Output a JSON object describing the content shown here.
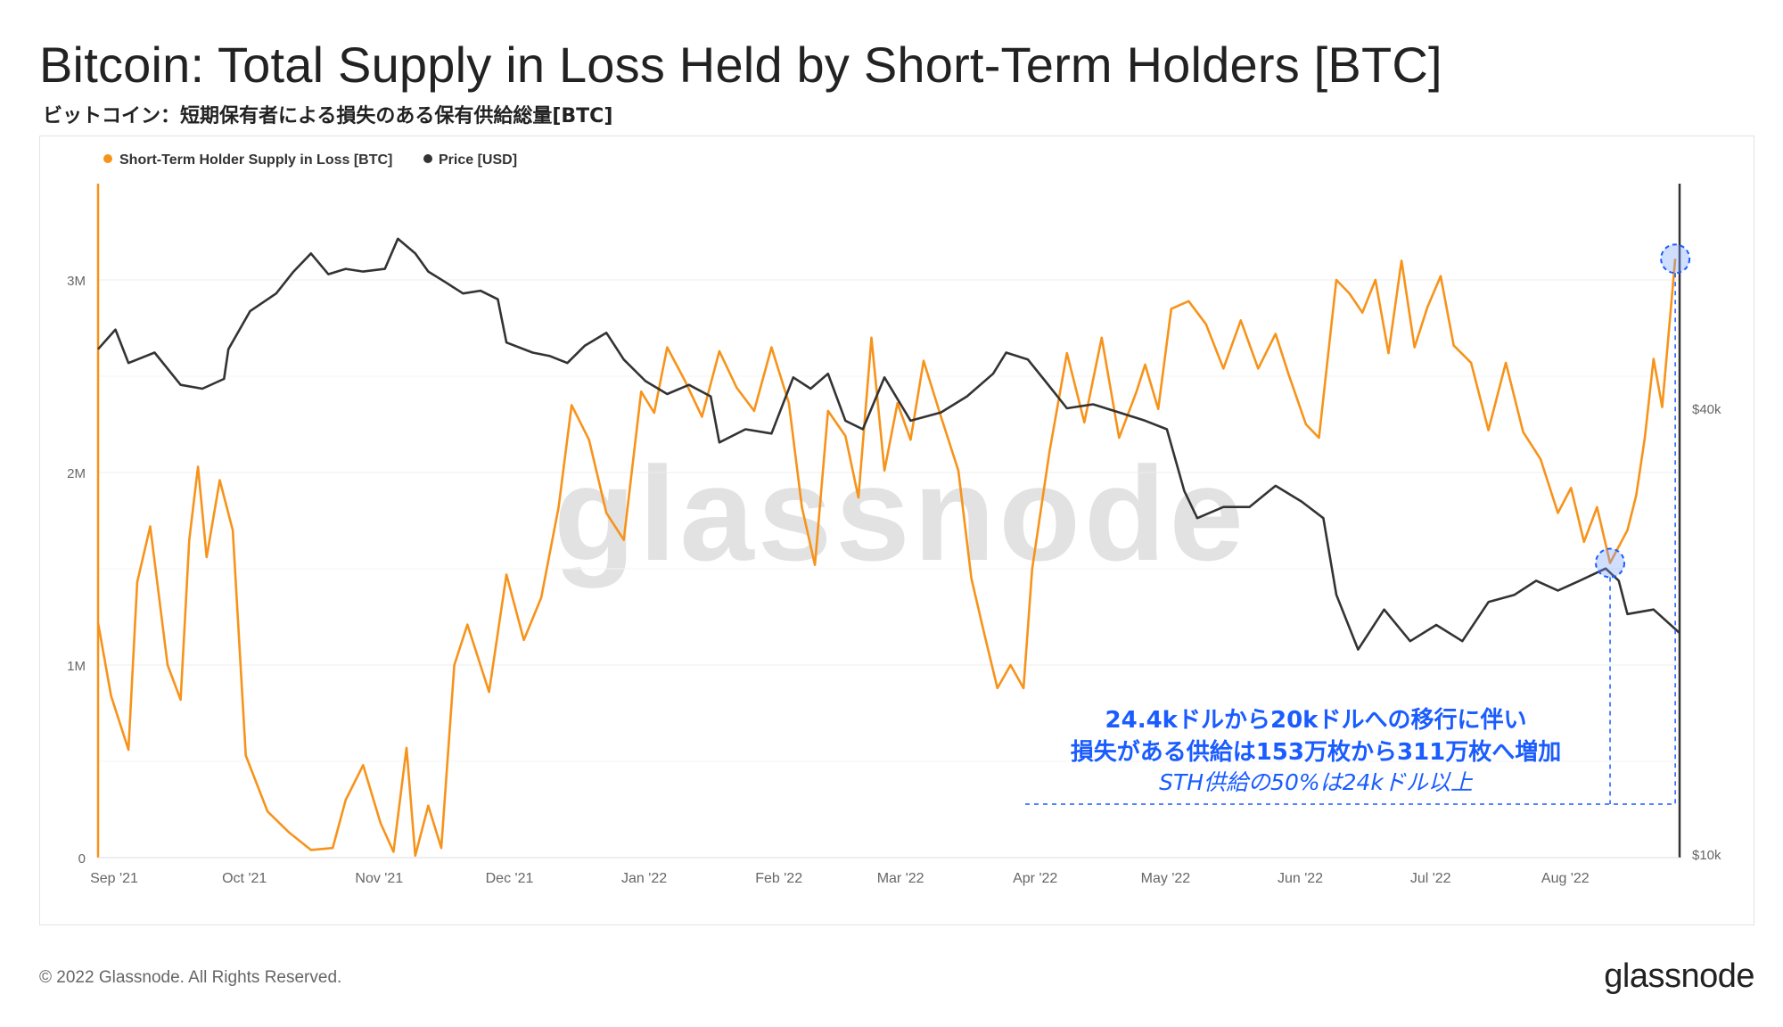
{
  "header": {
    "title": "Bitcoin: Total Supply in Loss Held by Short-Term Holders [BTC]",
    "subtitle": "ビットコイン：短期保有者による損失のある保有供給総量[BTC]"
  },
  "footer": {
    "copyright": "© 2022 Glassnode. All Rights Reserved.",
    "logo": "glassnode"
  },
  "watermark": "glassnode",
  "annotation": {
    "line1": "24.4kドルから20kドルへの移行に伴い",
    "line2": "損失がある供給は153万枚から311万枚へ増加",
    "line3": "STH供給の50%は24kドル以上",
    "color": "#1a5cff"
  },
  "chart_data": {
    "type": "line",
    "x_start": "2021-09-01",
    "x_end": "2022-08-31",
    "x_ticks": [
      "Sep '21",
      "Oct '21",
      "Nov '21",
      "Dec '21",
      "Jan '22",
      "Feb '22",
      "Mar '22",
      "Apr '22",
      "May '22",
      "Jun '22",
      "Jul '22",
      "Aug '22"
    ],
    "y_left": {
      "ticks": [
        "0",
        "1M",
        "2M",
        "3M"
      ],
      "ylim": [
        0,
        3500000
      ]
    },
    "y_right": {
      "ticks": [
        "$10k",
        "$40k"
      ],
      "scale": "log",
      "ylim": [
        10000,
        80000
      ]
    },
    "legend_placement": "top-left",
    "grid": true,
    "colors": {
      "sth": "#f7931a",
      "price": "#333333",
      "grid": "#ececec",
      "axis_text": "#666666"
    },
    "series": [
      {
        "name": "Short-Term Holder Supply in Loss [BTC]",
        "axis": "left",
        "points": [
          [
            "2021-09-01",
            1220000
          ],
          [
            "2021-09-04",
            840000
          ],
          [
            "2021-09-08",
            560000
          ],
          [
            "2021-09-10",
            1430000
          ],
          [
            "2021-09-13",
            1720000
          ],
          [
            "2021-09-17",
            1000000
          ],
          [
            "2021-09-20",
            820000
          ],
          [
            "2021-09-22",
            1650000
          ],
          [
            "2021-09-24",
            2030000
          ],
          [
            "2021-09-26",
            1560000
          ],
          [
            "2021-09-29",
            1960000
          ],
          [
            "2021-10-02",
            1700000
          ],
          [
            "2021-10-05",
            530000
          ],
          [
            "2021-10-10",
            240000
          ],
          [
            "2021-10-15",
            130000
          ],
          [
            "2021-10-20",
            40000
          ],
          [
            "2021-10-25",
            50000
          ],
          [
            "2021-10-28",
            300000
          ],
          [
            "2021-11-01",
            480000
          ],
          [
            "2021-11-05",
            180000
          ],
          [
            "2021-11-08",
            30000
          ],
          [
            "2021-11-11",
            570000
          ],
          [
            "2021-11-13",
            10000
          ],
          [
            "2021-11-16",
            270000
          ],
          [
            "2021-11-19",
            50000
          ],
          [
            "2021-11-22",
            1000000
          ],
          [
            "2021-11-25",
            1210000
          ],
          [
            "2021-11-30",
            860000
          ],
          [
            "2021-12-04",
            1470000
          ],
          [
            "2021-12-08",
            1130000
          ],
          [
            "2021-12-12",
            1350000
          ],
          [
            "2021-12-16",
            1820000
          ],
          [
            "2021-12-19",
            2350000
          ],
          [
            "2021-12-23",
            2170000
          ],
          [
            "2021-12-27",
            1790000
          ],
          [
            "2021-12-31",
            1650000
          ],
          [
            "2022-01-04",
            2420000
          ],
          [
            "2022-01-07",
            2310000
          ],
          [
            "2022-01-10",
            2650000
          ],
          [
            "2022-01-14",
            2480000
          ],
          [
            "2022-01-18",
            2290000
          ],
          [
            "2022-01-22",
            2630000
          ],
          [
            "2022-01-26",
            2440000
          ],
          [
            "2022-01-30",
            2320000
          ],
          [
            "2022-02-03",
            2650000
          ],
          [
            "2022-02-07",
            2360000
          ],
          [
            "2022-02-10",
            1820000
          ],
          [
            "2022-02-13",
            1520000
          ],
          [
            "2022-02-16",
            2320000
          ],
          [
            "2022-02-20",
            2190000
          ],
          [
            "2022-02-23",
            1870000
          ],
          [
            "2022-02-26",
            2700000
          ],
          [
            "2022-03-01",
            2010000
          ],
          [
            "2022-03-04",
            2360000
          ],
          [
            "2022-03-07",
            2170000
          ],
          [
            "2022-03-10",
            2580000
          ],
          [
            "2022-03-14",
            2290000
          ],
          [
            "2022-03-18",
            2010000
          ],
          [
            "2022-03-21",
            1450000
          ],
          [
            "2022-03-24",
            1160000
          ],
          [
            "2022-03-27",
            880000
          ],
          [
            "2022-03-30",
            1000000
          ],
          [
            "2022-04-02",
            880000
          ],
          [
            "2022-04-04",
            1500000
          ],
          [
            "2022-04-08",
            2110000
          ],
          [
            "2022-04-12",
            2620000
          ],
          [
            "2022-04-16",
            2260000
          ],
          [
            "2022-04-20",
            2700000
          ],
          [
            "2022-04-24",
            2180000
          ],
          [
            "2022-04-28",
            2420000
          ],
          [
            "2022-04-30",
            2560000
          ],
          [
            "2022-05-03",
            2330000
          ],
          [
            "2022-05-06",
            2850000
          ],
          [
            "2022-05-10",
            2890000
          ],
          [
            "2022-05-14",
            2770000
          ],
          [
            "2022-05-18",
            2540000
          ],
          [
            "2022-05-22",
            2790000
          ],
          [
            "2022-05-26",
            2540000
          ],
          [
            "2022-05-30",
            2720000
          ],
          [
            "2022-06-02",
            2510000
          ],
          [
            "2022-06-06",
            2250000
          ],
          [
            "2022-06-09",
            2180000
          ],
          [
            "2022-06-13",
            3000000
          ],
          [
            "2022-06-16",
            2930000
          ],
          [
            "2022-06-19",
            2830000
          ],
          [
            "2022-06-22",
            3000000
          ],
          [
            "2022-06-25",
            2620000
          ],
          [
            "2022-06-28",
            3100000
          ],
          [
            "2022-07-01",
            2650000
          ],
          [
            "2022-07-04",
            2860000
          ],
          [
            "2022-07-07",
            3020000
          ],
          [
            "2022-07-10",
            2660000
          ],
          [
            "2022-07-14",
            2570000
          ],
          [
            "2022-07-18",
            2220000
          ],
          [
            "2022-07-22",
            2570000
          ],
          [
            "2022-07-26",
            2210000
          ],
          [
            "2022-07-30",
            2070000
          ],
          [
            "2022-08-03",
            1790000
          ],
          [
            "2022-08-06",
            1920000
          ],
          [
            "2022-08-09",
            1640000
          ],
          [
            "2022-08-12",
            1820000
          ],
          [
            "2022-08-15",
            1530000
          ],
          [
            "2022-08-19",
            1700000
          ],
          [
            "2022-08-21",
            1880000
          ],
          [
            "2022-08-23",
            2180000
          ],
          [
            "2022-08-25",
            2590000
          ],
          [
            "2022-08-27",
            2340000
          ],
          [
            "2022-08-30",
            3110000
          ]
        ]
      },
      {
        "name": "Price [USD]",
        "axis": "right",
        "points": [
          [
            "2021-09-01",
            48000
          ],
          [
            "2021-09-05",
            51000
          ],
          [
            "2021-09-08",
            46000
          ],
          [
            "2021-09-14",
            47500
          ],
          [
            "2021-09-20",
            43000
          ],
          [
            "2021-09-25",
            42500
          ],
          [
            "2021-09-30",
            43800
          ],
          [
            "2021-10-01",
            48000
          ],
          [
            "2021-10-06",
            54000
          ],
          [
            "2021-10-12",
            57000
          ],
          [
            "2021-10-16",
            61000
          ],
          [
            "2021-10-20",
            64500
          ],
          [
            "2021-10-24",
            60500
          ],
          [
            "2021-10-28",
            61500
          ],
          [
            "2021-11-01",
            61000
          ],
          [
            "2021-11-06",
            61500
          ],
          [
            "2021-11-09",
            67500
          ],
          [
            "2021-11-13",
            64500
          ],
          [
            "2021-11-16",
            61000
          ],
          [
            "2021-11-20",
            59000
          ],
          [
            "2021-11-24",
            57000
          ],
          [
            "2021-11-28",
            57500
          ],
          [
            "2021-12-02",
            56000
          ],
          [
            "2021-12-04",
            49000
          ],
          [
            "2021-12-10",
            47500
          ],
          [
            "2021-12-14",
            47000
          ],
          [
            "2021-12-18",
            46000
          ],
          [
            "2021-12-22",
            48500
          ],
          [
            "2021-12-27",
            50500
          ],
          [
            "2021-12-31",
            46500
          ],
          [
            "2022-01-05",
            43500
          ],
          [
            "2022-01-10",
            41800
          ],
          [
            "2022-01-15",
            43000
          ],
          [
            "2022-01-20",
            41500
          ],
          [
            "2022-01-22",
            36000
          ],
          [
            "2022-01-28",
            37500
          ],
          [
            "2022-02-03",
            37000
          ],
          [
            "2022-02-08",
            44000
          ],
          [
            "2022-02-12",
            42500
          ],
          [
            "2022-02-16",
            44500
          ],
          [
            "2022-02-20",
            38500
          ],
          [
            "2022-02-24",
            37500
          ],
          [
            "2022-03-01",
            44000
          ],
          [
            "2022-03-07",
            38500
          ],
          [
            "2022-03-14",
            39500
          ],
          [
            "2022-03-20",
            41500
          ],
          [
            "2022-03-26",
            44500
          ],
          [
            "2022-03-29",
            47500
          ],
          [
            "2022-04-03",
            46500
          ],
          [
            "2022-04-07",
            43500
          ],
          [
            "2022-04-12",
            40000
          ],
          [
            "2022-04-18",
            40500
          ],
          [
            "2022-04-24",
            39500
          ],
          [
            "2022-04-30",
            38500
          ],
          [
            "2022-05-05",
            37500
          ],
          [
            "2022-05-09",
            31000
          ],
          [
            "2022-05-12",
            28500
          ],
          [
            "2022-05-18",
            29500
          ],
          [
            "2022-05-24",
            29500
          ],
          [
            "2022-05-30",
            31500
          ],
          [
            "2022-06-05",
            30000
          ],
          [
            "2022-06-10",
            28500
          ],
          [
            "2022-06-13",
            22500
          ],
          [
            "2022-06-18",
            19000
          ],
          [
            "2022-06-24",
            21500
          ],
          [
            "2022-06-30",
            19500
          ],
          [
            "2022-07-06",
            20500
          ],
          [
            "2022-07-12",
            19500
          ],
          [
            "2022-07-18",
            22000
          ],
          [
            "2022-07-24",
            22500
          ],
          [
            "2022-07-29",
            23500
          ],
          [
            "2022-08-03",
            22800
          ],
          [
            "2022-08-08",
            23500
          ],
          [
            "2022-08-14",
            24400
          ],
          [
            "2022-08-17",
            23500
          ],
          [
            "2022-08-19",
            21200
          ],
          [
            "2022-08-25",
            21500
          ],
          [
            "2022-08-31",
            20000
          ]
        ]
      }
    ],
    "markers": [
      {
        "series": "Short-Term Holder Supply in Loss [BTC]",
        "date": "2022-08-15",
        "value": 1530000
      },
      {
        "series": "Short-Term Holder Supply in Loss [BTC]",
        "date": "2022-08-30",
        "value": 3110000
      }
    ]
  }
}
